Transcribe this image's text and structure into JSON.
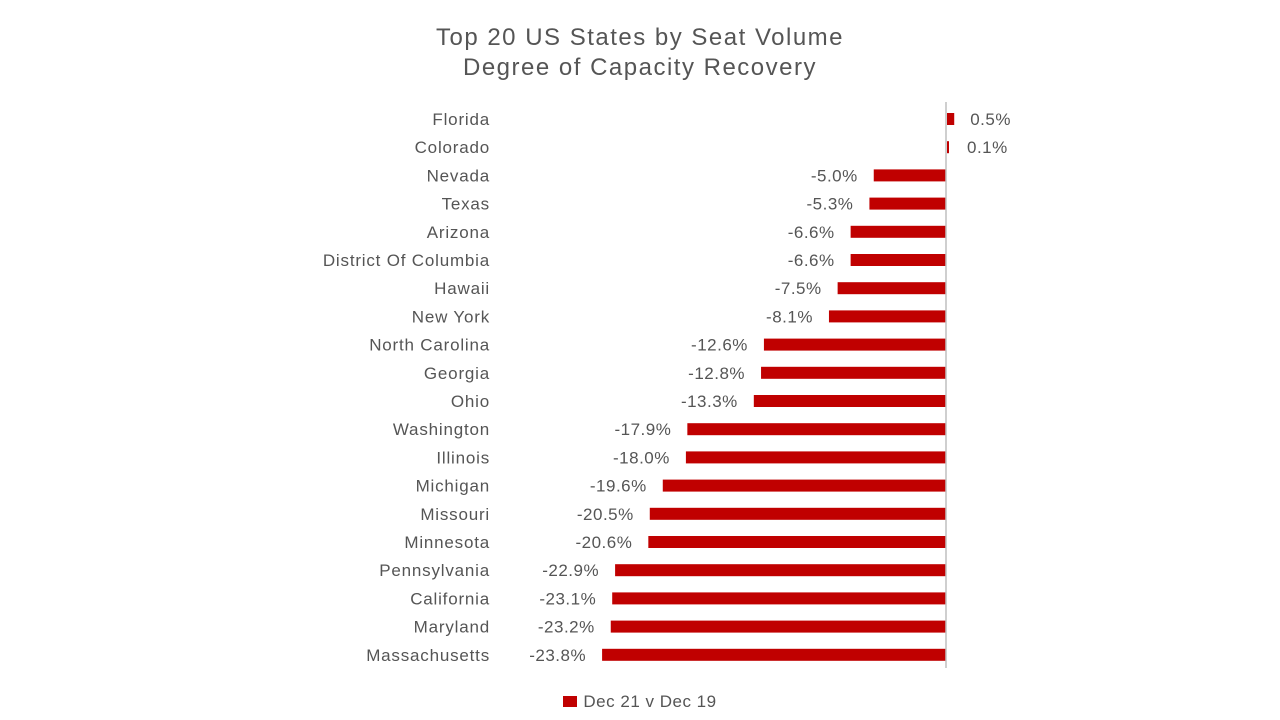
{
  "chart_data": {
    "type": "bar",
    "orientation": "horizontal",
    "title": "Top 20 US States by Seat Volume",
    "subtitle": "Degree of Capacity Recovery",
    "xlabel": "",
    "ylabel": "",
    "xlim": [
      -23.8,
      0.5
    ],
    "grid": false,
    "legend_position": "bottom",
    "value_format": "percent_1dp",
    "bar_color": "#c00000",
    "axis_color": "#bfbfbf",
    "categories": [
      "Florida",
      "Colorado",
      "Nevada",
      "Texas",
      "Arizona",
      "District Of Columbia",
      "Hawaii",
      "New York",
      "North Carolina",
      "Georgia",
      "Ohio",
      "Washington",
      "Illinois",
      "Michigan",
      "Missouri",
      "Minnesota",
      "Pennsylvania",
      "California",
      "Maryland",
      "Massachusetts"
    ],
    "series": [
      {
        "name": "Dec 21 v Dec 19",
        "values": [
          0.5,
          0.1,
          -5.0,
          -5.3,
          -6.6,
          -6.6,
          -7.5,
          -8.1,
          -12.6,
          -12.8,
          -13.3,
          -17.9,
          -18.0,
          -19.6,
          -20.5,
          -20.6,
          -22.9,
          -23.1,
          -23.2,
          -23.8
        ],
        "labels": [
          "0.5%",
          "0.1%",
          "-5.0%",
          "-5.3%",
          "-6.6%",
          "-6.6%",
          "-7.5%",
          "-8.1%",
          "-12.6%",
          "-12.8%",
          "-13.3%",
          "-17.9%",
          "-18.0%",
          "-19.6%",
          "-20.5%",
          "-20.6%",
          "-22.9%",
          "-23.1%",
          "-23.2%",
          "-23.8%"
        ]
      }
    ]
  }
}
